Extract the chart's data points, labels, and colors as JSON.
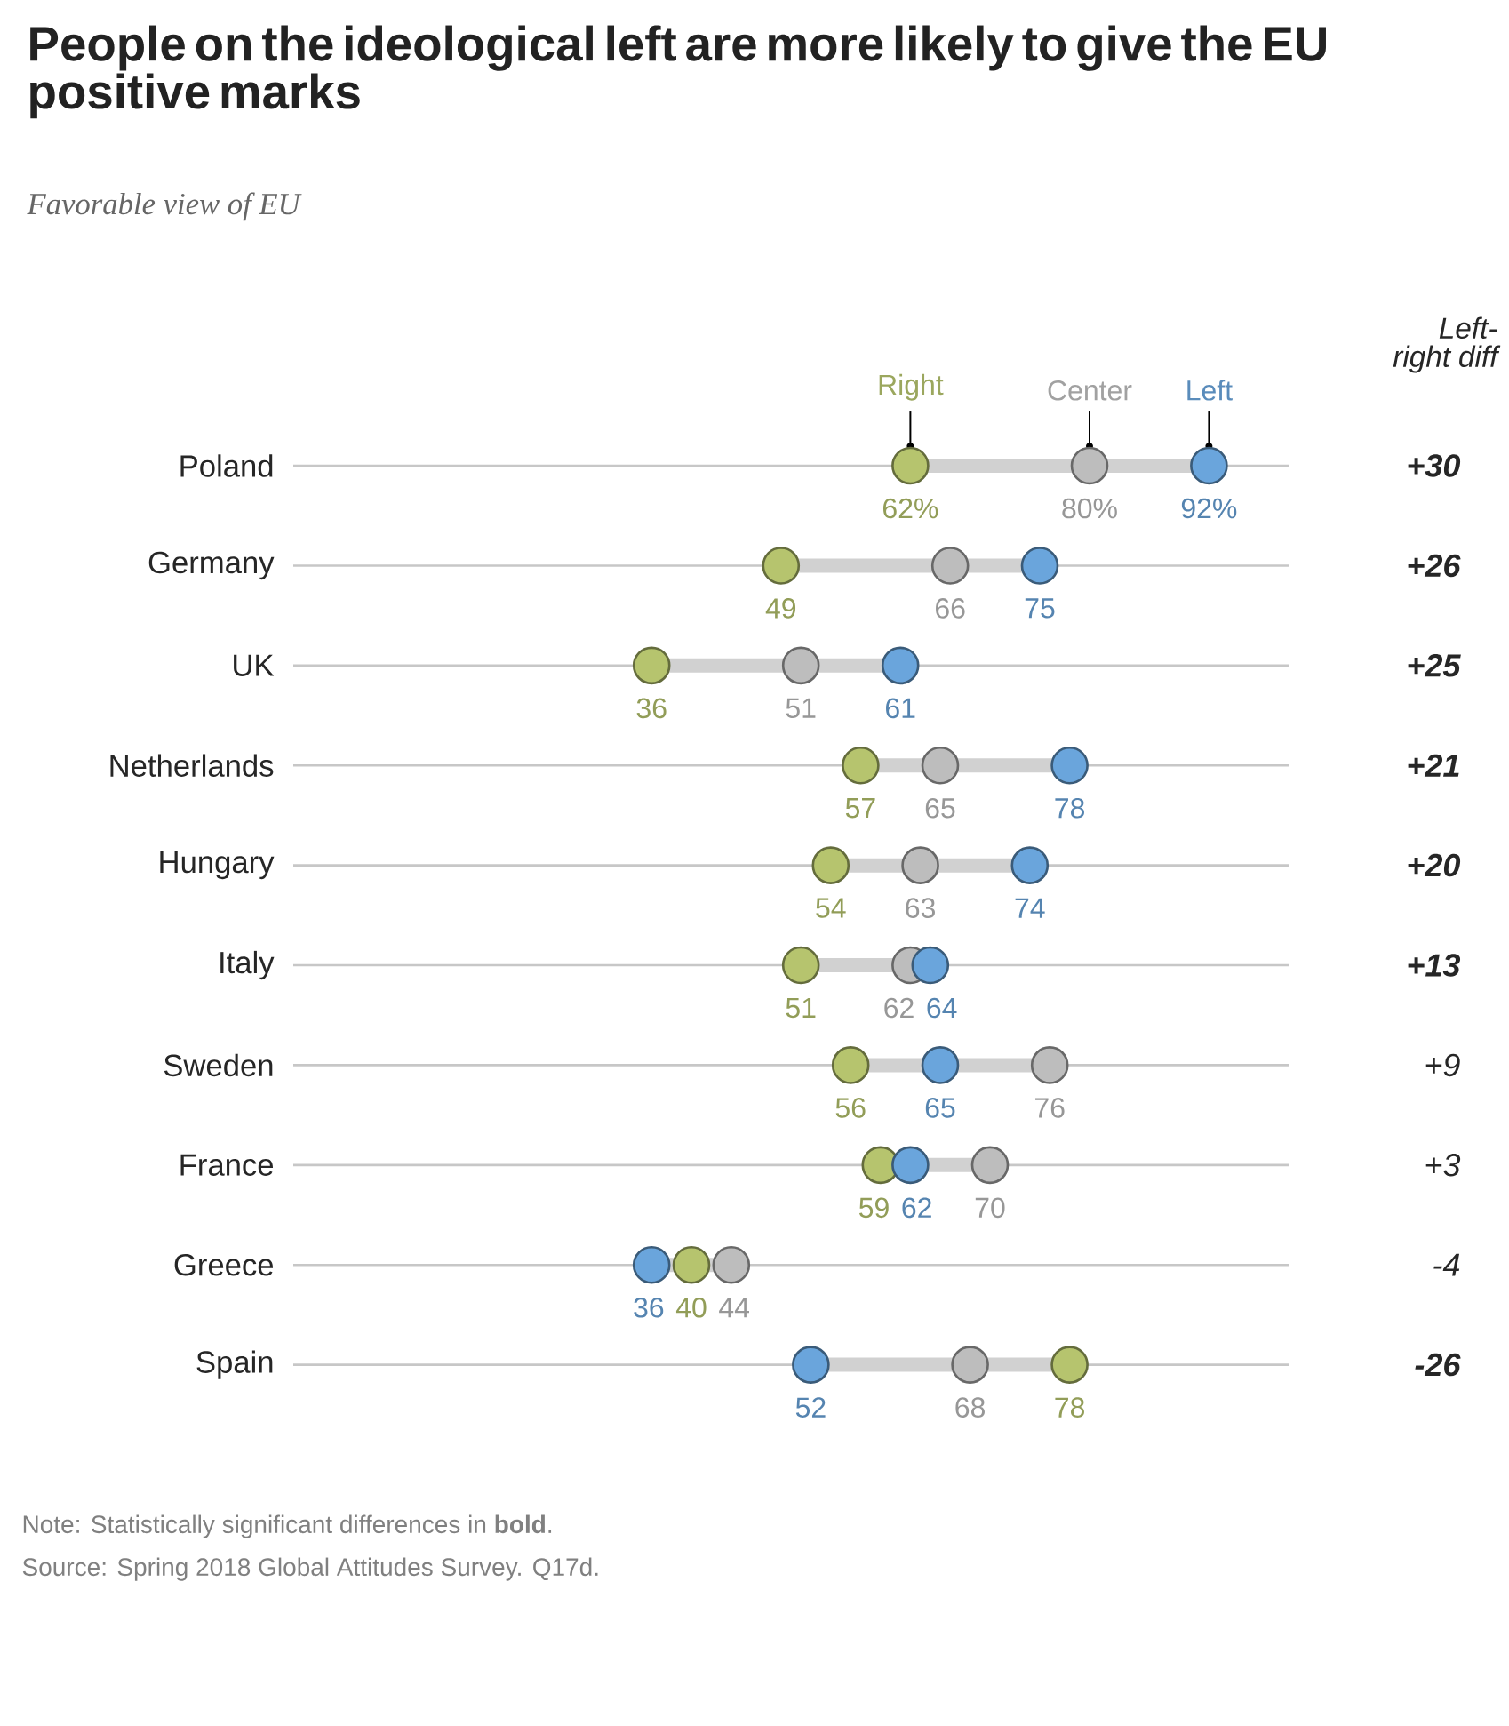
{
  "chart_data": {
    "type": "scatter",
    "orientation": "horizontal",
    "title": "People on the ideological left are more likely to give the EU positive marks",
    "subtitle": "Favorable view of EU",
    "categories": [
      "Poland",
      "Germany",
      "UK",
      "Netherlands",
      "Hungary",
      "Italy",
      "Sweden",
      "France",
      "Greece",
      "Spain"
    ],
    "series": [
      {
        "name": "Right",
        "color": "#b6c46e",
        "values": [
          62,
          49,
          36,
          57,
          54,
          51,
          56,
          59,
          40,
          78
        ],
        "value_labels": [
          "62%",
          "49",
          "36",
          "57",
          "54",
          "51",
          "56",
          "59",
          "40",
          "78"
        ]
      },
      {
        "name": "Center",
        "color": "#bdbdbd",
        "values": [
          80,
          66,
          51,
          65,
          63,
          62,
          76,
          70,
          44,
          68
        ],
        "value_labels": [
          "80%",
          "66",
          "51",
          "65",
          "63",
          "62",
          "76",
          "70",
          "44",
          "68"
        ]
      },
      {
        "name": "Left",
        "color": "#6aa5dc",
        "values": [
          92,
          75,
          61,
          78,
          74,
          64,
          65,
          62,
          36,
          52
        ],
        "value_labels": [
          "92%",
          "75",
          "61",
          "78",
          "74",
          "64",
          "65",
          "62",
          "36",
          "52"
        ]
      }
    ],
    "xlim": [
      0,
      100
    ],
    "tick_labels": "y",
    "grid": "y",
    "legend": false,
    "annotations": [
      "Left-right diff",
      "**+30**",
      "**+26**",
      "**+25**",
      "**+21**",
      "**+20**",
      "**+13**",
      "+9",
      "+3",
      "-4",
      "**-26**",
      "Note: Statistically significant differences in **bold**.",
      "Source: Spring 2018 Global Attitudes Survey. Q17d."
    ]
  }
}
